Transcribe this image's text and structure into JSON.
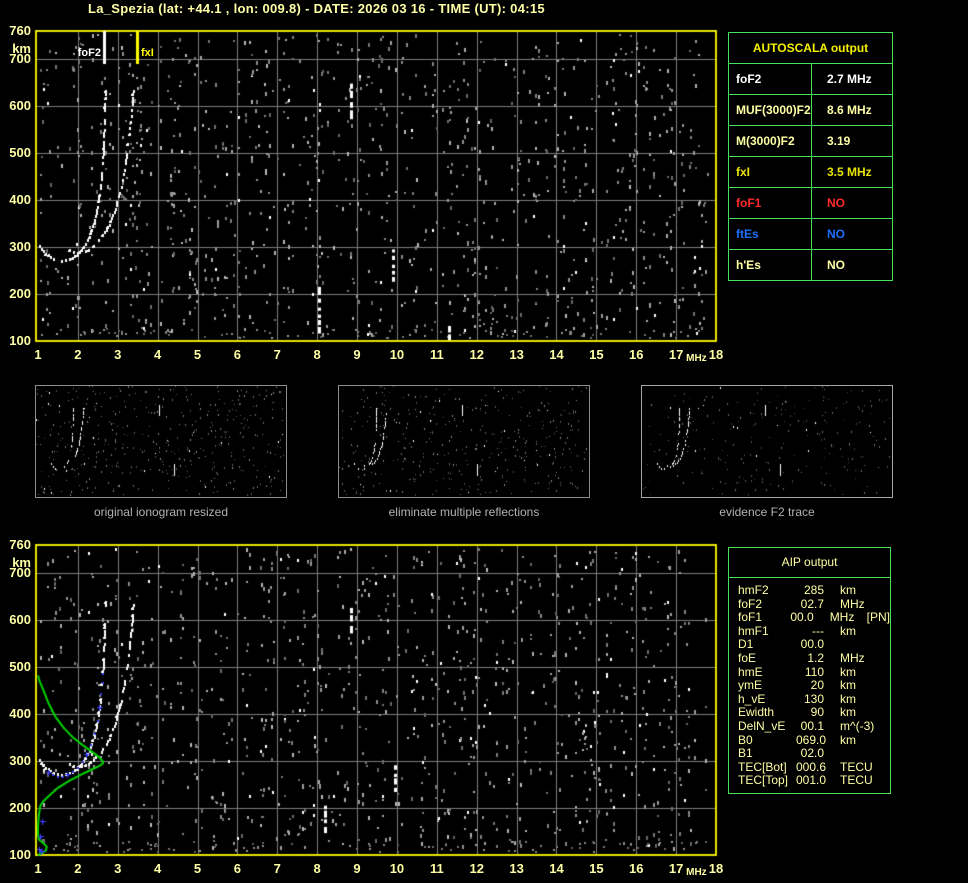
{
  "title": "La_Spezia (lat: +44.1 , lon: 009.8) - DATE: 2026 03 16 - TIME (UT): 04:15",
  "colors": {
    "background": "#000000",
    "axis_text": "#ffffa6",
    "plot_border": "#e9e500",
    "grid": "#7c7c7c",
    "table_border": "#49e25b",
    "autoscala_header": "#f4f000",
    "caption_gray": "#b2b2b2",
    "profile_green": "#00d400",
    "restored_blue": "#3a3cff",
    "fof2_marker": "#ffffff",
    "fxi_marker": "#ffff00"
  },
  "autoscala_table": {
    "title": "AUTOSCALA output",
    "rows": [
      {
        "label": "foF2",
        "value": "2.7 MHz",
        "color": "#ffffff"
      },
      {
        "label": "MUF(3000)F2",
        "value": "8.6 MHz",
        "color": "#ffffa6"
      },
      {
        "label": "M(3000)F2",
        "value": "3.19",
        "color": "#ffffa6"
      },
      {
        "label": "fxI",
        "value": "3.5 MHz",
        "color": "#e8e400"
      },
      {
        "label": "foF1",
        "value": "NO",
        "color": "#ff2a2a"
      },
      {
        "label": "ftEs",
        "value": "NO",
        "color": "#1e6eff"
      },
      {
        "label": "h'Es",
        "value": "NO",
        "color": "#ffffa6"
      }
    ]
  },
  "aip_table": {
    "title": "AIP output",
    "rows": [
      {
        "param": "hmF2",
        "value": "285",
        "unit": "km",
        "note": ""
      },
      {
        "param": "foF2",
        "value": "02.7",
        "unit": "MHz",
        "note": ""
      },
      {
        "param": "foF1",
        "value": "00.0",
        "unit": "MHz",
        "note": "[PN]"
      },
      {
        "param": "hmF1",
        "value": "---",
        "unit": "km",
        "note": ""
      },
      {
        "param": "D1",
        "value": "00.0",
        "unit": "",
        "note": ""
      },
      {
        "param": "foE",
        "value": "1.2",
        "unit": "MHz",
        "note": ""
      },
      {
        "param": "hmE",
        "value": "110",
        "unit": "km",
        "note": ""
      },
      {
        "param": "ymE",
        "value": "20",
        "unit": "km",
        "note": ""
      },
      {
        "param": "h_vE",
        "value": "130",
        "unit": "km",
        "note": ""
      },
      {
        "param": "Ewidth",
        "value": "90",
        "unit": "km",
        "note": ""
      },
      {
        "param": "DelN_vE",
        "value": "00.1",
        "unit": "m^(-3)",
        "note": ""
      },
      {
        "param": "B0",
        "value": "069.0",
        "unit": "km",
        "note": ""
      },
      {
        "param": "B1",
        "value": "02.0",
        "unit": "",
        "note": ""
      },
      {
        "param": "TEC[Bot]",
        "value": "000.6",
        "unit": "TECU",
        "note": ""
      },
      {
        "param": "TEC[Top]",
        "value": "001.0",
        "unit": "TECU",
        "note": ""
      }
    ]
  },
  "thumbnails": [
    {
      "caption": "original ionogram resized"
    },
    {
      "caption": "eliminate multiple reflections"
    },
    {
      "caption": "evidence F2 trace"
    }
  ],
  "chart_data": [
    {
      "id": "main_ionogram",
      "type": "scatter",
      "xlabel": "MHz",
      "ylabel": "km",
      "xlim": [
        1,
        18
      ],
      "ylim": [
        100,
        760
      ],
      "grid": true,
      "xticks": [
        "1",
        "2",
        "3",
        "4",
        "5",
        "6",
        "7",
        "8",
        "9",
        "10",
        "11",
        "12",
        "13",
        "14",
        "15",
        "16",
        "17",
        "18"
      ],
      "yticks": [
        "760",
        "700",
        "600",
        "500",
        "400",
        "300",
        "200",
        "100"
      ],
      "markers": [
        {
          "label": "foF2",
          "f": 2.65,
          "color": "#ffffff"
        },
        {
          "label": "fxI",
          "f": 3.47,
          "color": "#ffff00"
        }
      ],
      "series": [
        {
          "name": "F2 trace o-mode",
          "color": "#ffffff",
          "points": [
            [
              1.05,
              302
            ],
            [
              1.2,
              286
            ],
            [
              1.4,
              275
            ],
            [
              1.6,
              271
            ],
            [
              1.8,
              274
            ],
            [
              2.0,
              284
            ],
            [
              2.15,
              300
            ],
            [
              2.3,
              322
            ],
            [
              2.42,
              352
            ],
            [
              2.52,
              392
            ],
            [
              2.59,
              438
            ],
            [
              2.64,
              492
            ],
            [
              2.67,
              550
            ],
            [
              2.69,
              605
            ],
            [
              2.7,
              645
            ]
          ]
        },
        {
          "name": "F2 trace x-mode",
          "color": "#ffffff",
          "points": [
            [
              1.8,
              293
            ],
            [
              2.0,
              287
            ],
            [
              2.2,
              291
            ],
            [
              2.4,
              302
            ],
            [
              2.6,
              320
            ],
            [
              2.8,
              348
            ],
            [
              2.95,
              382
            ],
            [
              3.1,
              428
            ],
            [
              3.2,
              478
            ],
            [
              3.3,
              540
            ],
            [
              3.37,
              598
            ],
            [
              3.41,
              645
            ]
          ]
        }
      ],
      "interference_streaks": [
        [
          8.85,
          585,
          648
        ],
        [
          9.9,
          225,
          295
        ],
        [
          8.05,
          120,
          215
        ],
        [
          11.3,
          102,
          132
        ]
      ]
    },
    {
      "id": "aip_restored_ionogram",
      "type": "scatter",
      "xlabel": "MHz",
      "ylabel": "km",
      "xlim": [
        1,
        18
      ],
      "ylim": [
        100,
        760
      ],
      "grid": true,
      "xticks": [
        "1",
        "2",
        "3",
        "4",
        "5",
        "6",
        "7",
        "8",
        "9",
        "10",
        "11",
        "12",
        "13",
        "14",
        "15",
        "16",
        "17",
        "18"
      ],
      "yticks": [
        "760",
        "700",
        "600",
        "500",
        "400",
        "300",
        "200",
        "100"
      ],
      "series": [
        {
          "name": "F2 trace o-mode",
          "color": "#ffffff",
          "points": [
            [
              1.05,
              302
            ],
            [
              1.2,
              286
            ],
            [
              1.4,
              275
            ],
            [
              1.6,
              271
            ],
            [
              1.8,
              274
            ],
            [
              2.0,
              284
            ],
            [
              2.15,
              300
            ],
            [
              2.3,
              322
            ],
            [
              2.42,
              352
            ],
            [
              2.52,
              392
            ],
            [
              2.59,
              438
            ],
            [
              2.64,
              492
            ],
            [
              2.67,
              550
            ],
            [
              2.69,
              605
            ],
            [
              2.7,
              645
            ]
          ]
        },
        {
          "name": "F2 trace x-mode",
          "color": "#ffffff",
          "points": [
            [
              1.8,
              293
            ],
            [
              2.0,
              287
            ],
            [
              2.2,
              291
            ],
            [
              2.4,
              302
            ],
            [
              2.6,
              320
            ],
            [
              2.8,
              348
            ],
            [
              2.95,
              382
            ],
            [
              3.1,
              428
            ],
            [
              3.2,
              478
            ],
            [
              3.3,
              540
            ],
            [
              3.37,
              598
            ],
            [
              3.41,
              645
            ]
          ]
        }
      ],
      "interference_streaks": [
        [
          8.85,
          584,
          626
        ],
        [
          9.95,
          234,
          291
        ],
        [
          8.2,
          150,
          205
        ]
      ],
      "profile": {
        "name": "electron density profile",
        "color": "#00d400",
        "points": [
          [
            1.0,
            100
          ],
          [
            1.1,
            104
          ],
          [
            1.2,
            110
          ],
          [
            1.22,
            118
          ],
          [
            1.12,
            126
          ],
          [
            1.03,
            132
          ],
          [
            1.0,
            142
          ],
          [
            1.0,
            160
          ],
          [
            1.02,
            185
          ],
          [
            1.06,
            205
          ],
          [
            1.14,
            215
          ],
          [
            1.28,
            226
          ],
          [
            1.5,
            243
          ],
          [
            1.78,
            258
          ],
          [
            2.08,
            271
          ],
          [
            2.35,
            282
          ],
          [
            2.55,
            290
          ],
          [
            2.63,
            295
          ],
          [
            2.62,
            300
          ],
          [
            2.52,
            309
          ],
          [
            2.35,
            320
          ],
          [
            2.12,
            334
          ],
          [
            1.88,
            350
          ],
          [
            1.65,
            370
          ],
          [
            1.44,
            394
          ],
          [
            1.27,
            422
          ],
          [
            1.13,
            452
          ],
          [
            1.04,
            470
          ],
          [
            1.0,
            482
          ]
        ]
      },
      "restored_trace": {
        "name": "restored h'(f) trace",
        "color": "#3a3cff",
        "points": [
          [
            1.28,
            277
          ],
          [
            1.38,
            272
          ],
          [
            1.5,
            269
          ],
          [
            1.62,
            269
          ],
          [
            1.75,
            272
          ],
          [
            1.88,
            278
          ],
          [
            2.0,
            288
          ],
          [
            2.12,
            300
          ],
          [
            2.24,
            316
          ],
          [
            2.34,
            336
          ],
          [
            2.43,
            360
          ],
          [
            2.5,
            388
          ],
          [
            2.55,
            415
          ],
          [
            2.59,
            445
          ],
          [
            2.62,
            468
          ],
          [
            2.64,
            487
          ]
        ],
        "isolated_points": [
          [
            1.12,
            172
          ],
          [
            1.08,
            140
          ],
          [
            1.05,
            112
          ],
          [
            1.1,
            108
          ]
        ]
      }
    }
  ]
}
